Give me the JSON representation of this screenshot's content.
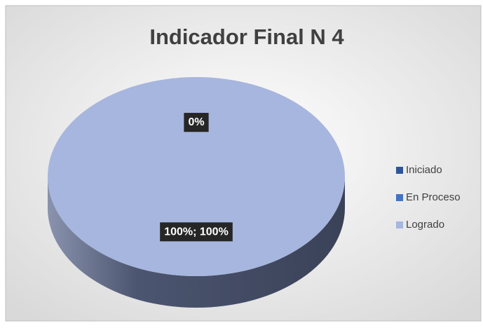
{
  "chart_data": {
    "type": "pie",
    "title": "Indicador Final N 4",
    "categories": [
      "Iniciado",
      "En Proceso",
      "Logrado"
    ],
    "values": [
      0,
      0,
      100
    ],
    "value_labels": [
      "0%",
      "0%",
      "100%; 100%"
    ],
    "colors": [
      "#2f5597",
      "#4472c4",
      "#a7b6de"
    ],
    "legend": "right"
  }
}
